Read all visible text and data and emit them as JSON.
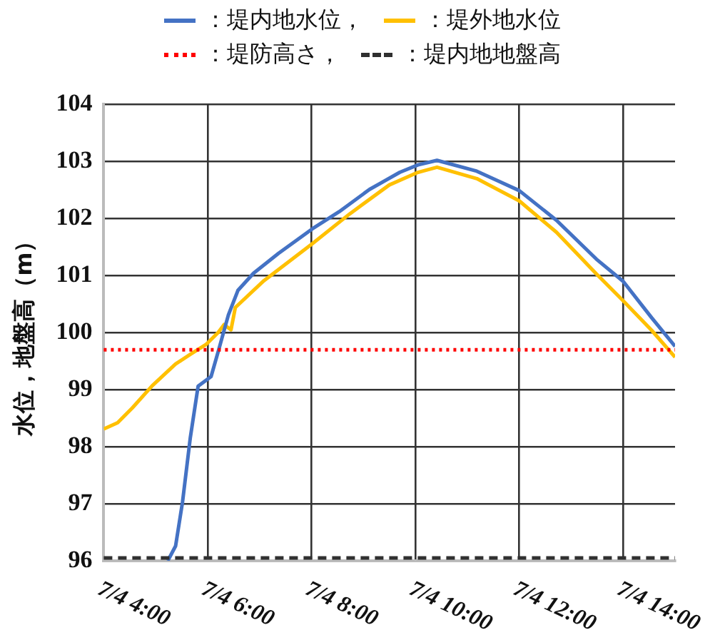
{
  "chart_data": {
    "type": "line",
    "ylabel": "水位，地盤高（m）",
    "xlim": [
      "--07-04T04:00",
      "--07-04T15:00"
    ],
    "xticks": [
      {
        "value": "--07-04T04:00",
        "label": "7/4 4:00"
      },
      {
        "value": "--07-04T06:00",
        "label": "7/4 6:00"
      },
      {
        "value": "--07-04T08:00",
        "label": "7/4 8:00"
      },
      {
        "value": "--07-04T10:00",
        "label": "7/4 10:00"
      },
      {
        "value": "--07-04T12:00",
        "label": "7/4 12:00"
      },
      {
        "value": "--07-04T14:00",
        "label": "7/4 14:00"
      }
    ],
    "ylim": [
      96,
      104
    ],
    "yticks": [
      96,
      97,
      98,
      99,
      100,
      101,
      102,
      103,
      104
    ],
    "grid": true,
    "legend": "top",
    "marker": "none",
    "line_style": "solid",
    "series": [
      {
        "name": "：堤内地水位，",
        "color": "#4472c4",
        "x": [
          "--07-04T05:14",
          "--07-04T05:23",
          "--07-04T05:31",
          "--07-04T05:40",
          "--07-04T05:49",
          "--07-04T06:04",
          "--07-04T06:13",
          "--07-04T06:24",
          "--07-04T06:35",
          "--07-04T06:53",
          "--07-04T07:22",
          "--07-04T08:01",
          "--07-04T08:32",
          "--07-04T09:07",
          "--07-04T09:42",
          "--07-04T10:03",
          "--07-04T10:25",
          "--07-04T11:11",
          "--07-04T12:00",
          "--07-04T12:43",
          "--07-04T13:29",
          "--07-04T14:00",
          "--07-04T14:33",
          "--07-04T15:00"
        ],
        "values": [
          96.0,
          96.26,
          97.03,
          98.16,
          99.06,
          99.23,
          99.71,
          100.31,
          100.74,
          101.04,
          101.39,
          101.82,
          102.12,
          102.51,
          102.81,
          102.94,
          103.02,
          102.83,
          102.49,
          101.97,
          101.29,
          100.9,
          100.26,
          99.76
        ]
      },
      {
        "name": "：堤外地水位",
        "color": "#ffc000",
        "x": [
          "--07-04T04:00",
          "--07-04T04:16",
          "--07-04T04:33",
          "--07-04T04:56",
          "--07-04T05:23",
          "--07-04T05:40",
          "--07-04T05:58",
          "--07-04T06:12",
          "--07-04T06:19",
          "--07-04T06:27",
          "--07-04T06:32",
          "--07-04T07:05",
          "--07-04T08:01",
          "--07-04T08:44",
          "--07-04T09:30",
          "--07-04T10:03",
          "--07-04T10:25",
          "--07-04T11:11",
          "--07-04T12:00",
          "--07-04T12:43",
          "--07-04T13:29",
          "--07-04T14:00",
          "--07-04T14:33",
          "--07-04T15:00"
        ],
        "values": [
          98.31,
          98.42,
          98.68,
          99.07,
          99.45,
          99.62,
          99.79,
          100.0,
          100.14,
          100.05,
          100.44,
          100.91,
          101.56,
          102.08,
          102.59,
          102.81,
          102.9,
          102.7,
          102.31,
          101.76,
          101.03,
          100.56,
          100.04,
          99.57
        ]
      }
    ],
    "ref_lines": [
      {
        "axis": "y",
        "value": 99.7,
        "label": "：堤防高さ，",
        "color": "#ff0000",
        "line_style": "dotted"
      },
      {
        "axis": "y",
        "value": 96.05,
        "label": "：堤内地地盤高",
        "color": "#303030",
        "line_style": "dashed"
      }
    ]
  }
}
